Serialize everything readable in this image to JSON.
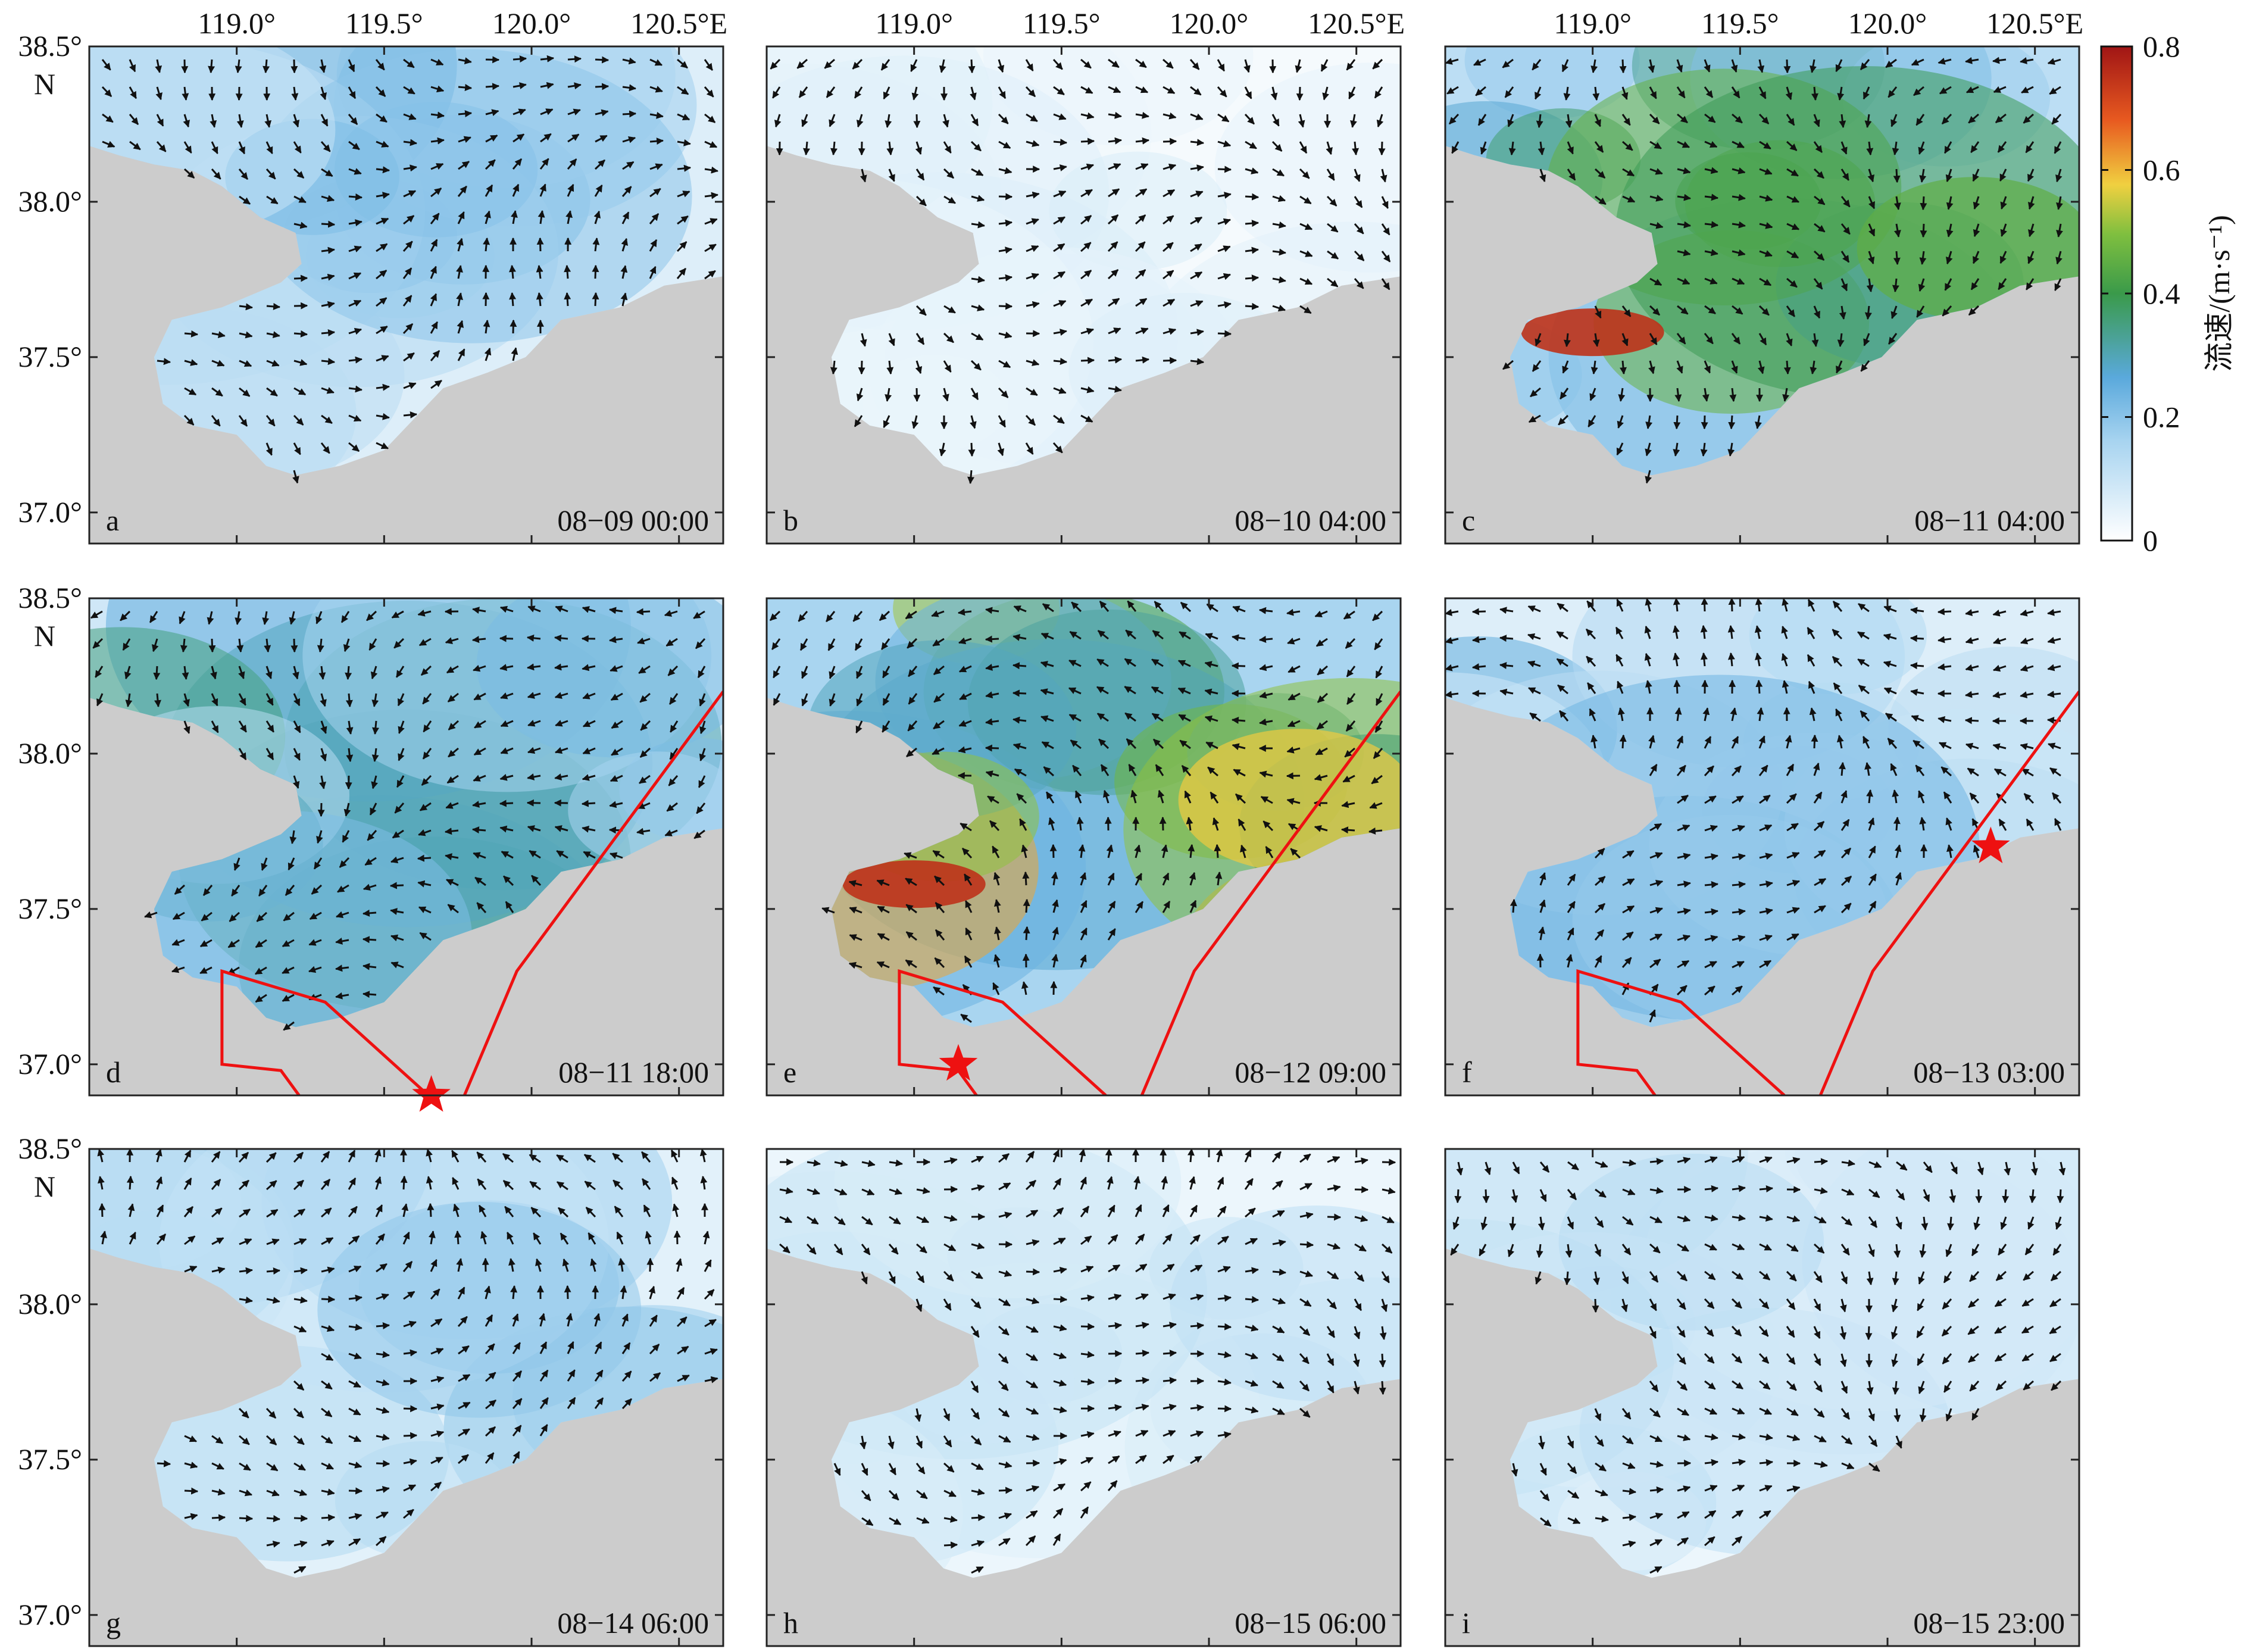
{
  "figure": {
    "axes": {
      "lon_ticks": [
        "119.0°",
        "119.5°",
        "120.0°",
        "120.5°E"
      ],
      "lat_ticks": [
        "38.5°",
        "38.0°",
        "37.5°",
        "37.0°"
      ],
      "lat_hemisphere": "N"
    },
    "colorbar": {
      "label": "流速/(m·s⁻¹)",
      "ticks": [
        "0.8",
        "0.6",
        "0.4",
        "0.2",
        "0"
      ],
      "range": [
        0,
        0.8
      ],
      "colors": [
        "#ffffff",
        "#5aa9dc",
        "#3a9a4a",
        "#f0d040",
        "#e03a20",
        "#a01515"
      ]
    },
    "panels": [
      {
        "letter": "a",
        "time": "08−09 00:00",
        "intensity": 0.18
      },
      {
        "letter": "b",
        "time": "08−10 04:00",
        "intensity": 0.05
      },
      {
        "letter": "c",
        "time": "08−11 04:00",
        "intensity": 0.35
      },
      {
        "letter": "d",
        "time": "08−11 18:00",
        "intensity": 0.25
      },
      {
        "letter": "e",
        "time": "08−12 09:00",
        "intensity": 0.45
      },
      {
        "letter": "f",
        "time": "08−13 03:00",
        "intensity": 0.18
      },
      {
        "letter": "g",
        "time": "08−14 06:00",
        "intensity": 0.15
      },
      {
        "letter": "h",
        "time": "08−15 06:00",
        "intensity": 0.1
      },
      {
        "letter": "i",
        "time": "08−15 23:00",
        "intensity": 0.1
      }
    ],
    "colors": {
      "land": "#cccccc",
      "water_low": "#ffffff",
      "water_mid": "#8cc4ea",
      "arrow": "#111111",
      "track": "#ee1111",
      "star": "#ee1111"
    }
  }
}
